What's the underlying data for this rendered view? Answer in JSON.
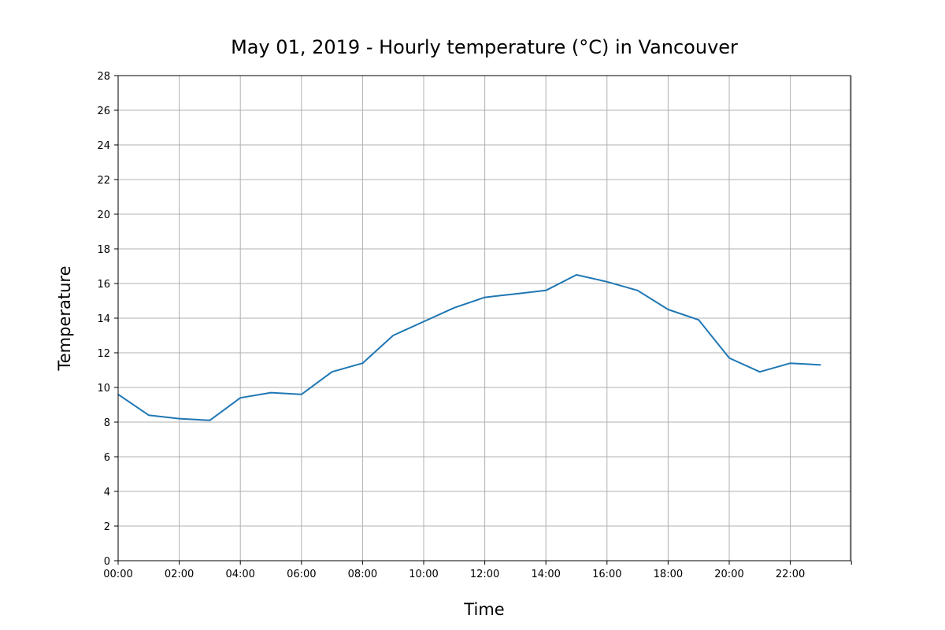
{
  "chart_data": {
    "type": "line",
    "title": "May 01, 2019 - Hourly temperature (°C) in Vancouver",
    "xlabel": "Time",
    "ylabel": "Temperature",
    "x": [
      "00:00",
      "01:00",
      "02:00",
      "03:00",
      "04:00",
      "05:00",
      "06:00",
      "07:00",
      "08:00",
      "09:00",
      "10:00",
      "11:00",
      "12:00",
      "13:00",
      "14:00",
      "15:00",
      "16:00",
      "17:00",
      "18:00",
      "19:00",
      "20:00",
      "21:00",
      "22:00",
      "23:00"
    ],
    "xticks": [
      "00:00",
      "02:00",
      "04:00",
      "06:00",
      "08:00",
      "10:00",
      "12:00",
      "14:00",
      "16:00",
      "18:00",
      "20:00",
      "22:00",
      ""
    ],
    "yticks": [
      "0",
      "2",
      "4",
      "6",
      "8",
      "10",
      "12",
      "14",
      "16",
      "18",
      "20",
      "22",
      "24",
      "26",
      "28"
    ],
    "ylim": [
      0,
      28
    ],
    "grid": true,
    "series": [
      {
        "color": "#1f77b4",
        "values": [
          9.6,
          8.4,
          8.2,
          8.1,
          9.4,
          9.7,
          9.6,
          10.9,
          11.4,
          13.0,
          13.8,
          14.6,
          15.2,
          15.4,
          15.6,
          16.5,
          16.1,
          15.6,
          14.5,
          13.9,
          11.7,
          10.9,
          11.4,
          11.3
        ]
      }
    ]
  }
}
